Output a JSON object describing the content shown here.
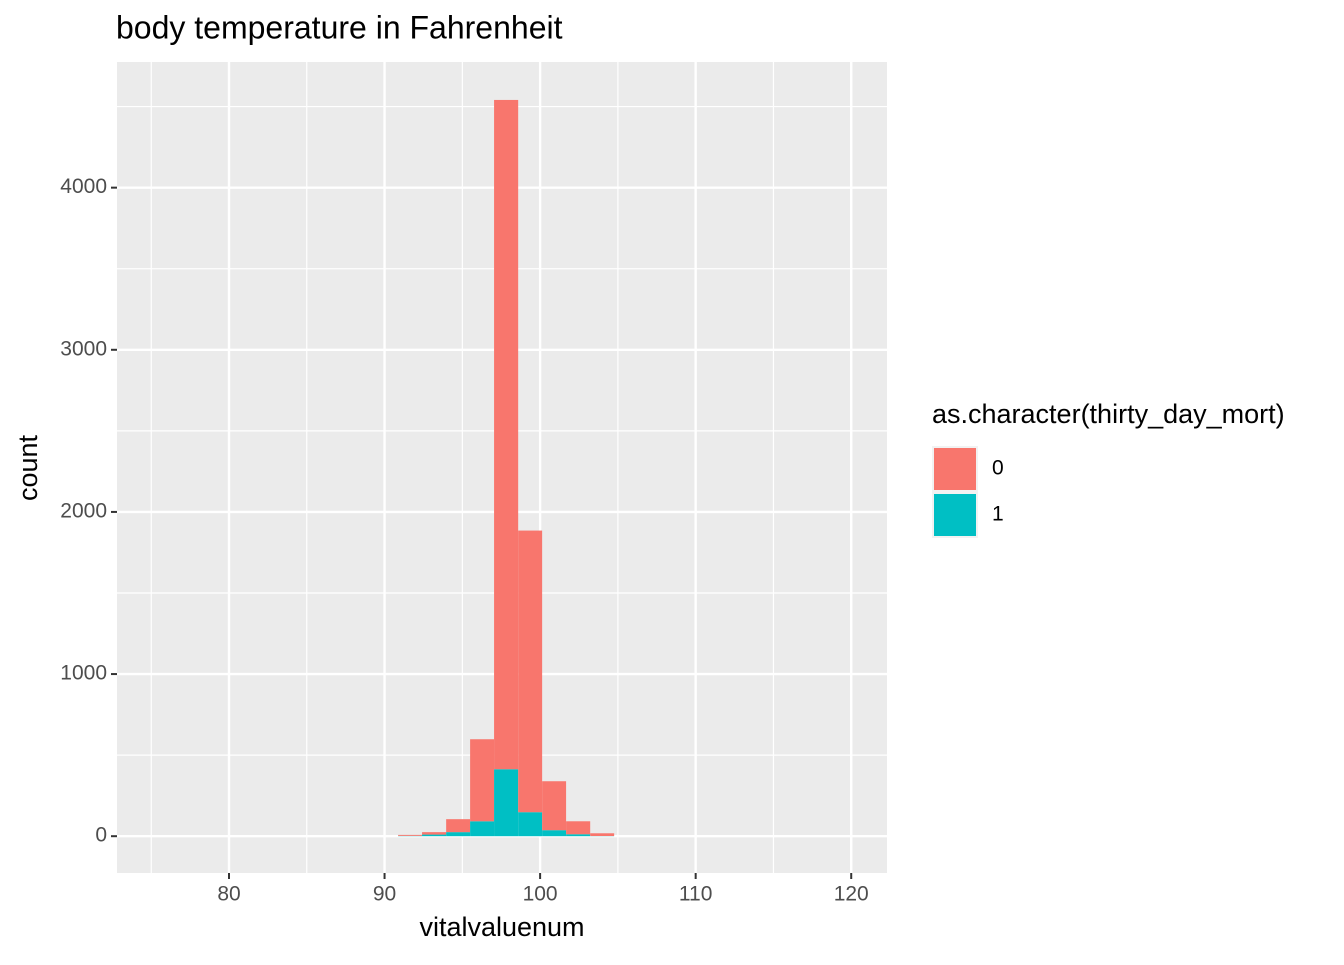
{
  "chart_data": {
    "type": "histogram",
    "title": "body temperature in Fahrenheit",
    "x_label": "vitalvaluenum",
    "y_label": "count",
    "bins": [
      90.87,
      92.41,
      93.96,
      95.5,
      97.04,
      98.59,
      100.13,
      101.67,
      103.22,
      104.76
    ],
    "series": [
      {
        "name": "0",
        "color": "#F8766D",
        "values": [
          6,
          15,
          80,
          506,
          4128,
          1737,
          302,
          80,
          17
        ]
      },
      {
        "name": "1",
        "color": "#00BFC4",
        "values": [
          2,
          10,
          25,
          92,
          413,
          148,
          37,
          12,
          1
        ]
      }
    ],
    "stacked": true,
    "legend_title": "as.character(thirty_day_mort)",
    "legend": "right",
    "xlim": [
      72.8,
      122.3
    ],
    "xticks": [
      80,
      90,
      100,
      110,
      120
    ],
    "ylim": [
      -227,
      4775
    ],
    "yticks": [
      0,
      1000,
      2000,
      3000,
      4000
    ],
    "grid": true
  }
}
